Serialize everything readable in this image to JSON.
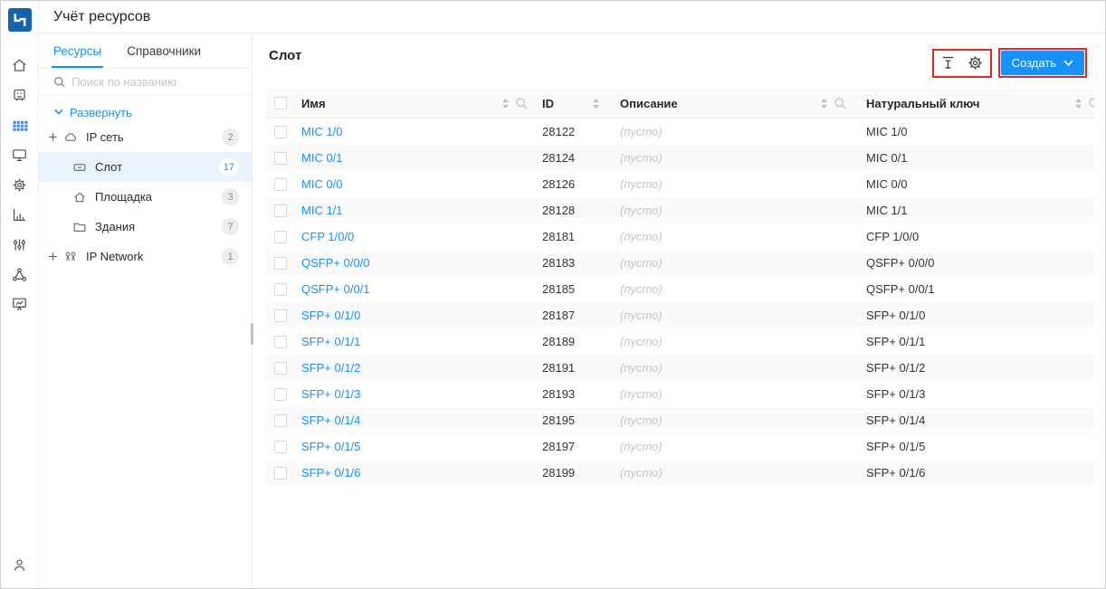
{
  "app": {
    "title": "Учёт ресурсов"
  },
  "colors": {
    "primary": "#1890ff",
    "annotation_red": "#e7261d",
    "logo_blue": "#1563ab",
    "selected_row_bg": "#e8f3fd"
  },
  "rail": {
    "items": [
      {
        "name": "home"
      },
      {
        "name": "terminal"
      },
      {
        "name": "apps-grid",
        "active": true
      },
      {
        "name": "monitor"
      },
      {
        "name": "settings"
      },
      {
        "name": "bar-chart"
      },
      {
        "name": "filters"
      },
      {
        "name": "cluster"
      },
      {
        "name": "dashboard"
      }
    ],
    "user": {
      "name": "user"
    }
  },
  "sidebar": {
    "tabs": [
      {
        "label": "Ресурсы",
        "active": true
      },
      {
        "label": "Справочники",
        "active": false
      }
    ],
    "search_placeholder": "Поиск по названию",
    "expand_label": "Развернуть",
    "tree": [
      {
        "key": "ip-net",
        "label": "IP сеть",
        "count": "2",
        "icon": "cloud",
        "expandable": true,
        "selected": false,
        "level": 0
      },
      {
        "key": "slot",
        "label": "Слот",
        "count": "17",
        "icon": "slot",
        "expandable": false,
        "selected": true,
        "level": 1
      },
      {
        "key": "site",
        "label": "Площадка",
        "count": "3",
        "icon": "home",
        "expandable": false,
        "selected": false,
        "level": 1
      },
      {
        "key": "buildings",
        "label": "Здания",
        "count": "7",
        "icon": "folder",
        "expandable": false,
        "selected": false,
        "level": 1
      },
      {
        "key": "ip-network",
        "label": "IP Network",
        "count": "1",
        "icon": "network",
        "expandable": true,
        "selected": false,
        "level": 0
      }
    ]
  },
  "main": {
    "title": "Слот",
    "toolbar": {
      "create_label": "Создать",
      "icons": [
        "row-height",
        "gear"
      ]
    },
    "table": {
      "empty_text": "(пусто)",
      "columns": [
        {
          "key": "name",
          "label": "Имя",
          "sortable": true,
          "searchable": true
        },
        {
          "key": "id",
          "label": "ID",
          "sortable": true,
          "searchable": false
        },
        {
          "key": "desc",
          "label": "Описание",
          "sortable": true,
          "searchable": true
        },
        {
          "key": "key",
          "label": "Натуральный ключ",
          "sortable": true,
          "searchable": true
        }
      ],
      "rows": [
        {
          "name": "MIC 1/0",
          "id": "28122",
          "desc": "(пусто)",
          "key": "MIC 1/0"
        },
        {
          "name": "MIC 0/1",
          "id": "28124",
          "desc": "(пусто)",
          "key": "MIC 0/1"
        },
        {
          "name": "MIC 0/0",
          "id": "28126",
          "desc": "(пусто)",
          "key": "MIC 0/0"
        },
        {
          "name": "MIC 1/1",
          "id": "28128",
          "desc": "(пусто)",
          "key": "MIC 1/1"
        },
        {
          "name": "CFP 1/0/0",
          "id": "28181",
          "desc": "(пусто)",
          "key": "CFP 1/0/0"
        },
        {
          "name": "QSFP+ 0/0/0",
          "id": "28183",
          "desc": "(пусто)",
          "key": "QSFP+ 0/0/0"
        },
        {
          "name": "QSFP+ 0/0/1",
          "id": "28185",
          "desc": "(пусто)",
          "key": "QSFP+ 0/0/1"
        },
        {
          "name": "SFP+ 0/1/0",
          "id": "28187",
          "desc": "(пусто)",
          "key": "SFP+ 0/1/0"
        },
        {
          "name": "SFP+ 0/1/1",
          "id": "28189",
          "desc": "(пусто)",
          "key": "SFP+ 0/1/1"
        },
        {
          "name": "SFP+ 0/1/2",
          "id": "28191",
          "desc": "(пусто)",
          "key": "SFP+ 0/1/2"
        },
        {
          "name": "SFP+ 0/1/3",
          "id": "28193",
          "desc": "(пусто)",
          "key": "SFP+ 0/1/3"
        },
        {
          "name": "SFP+ 0/1/4",
          "id": "28195",
          "desc": "(пусто)",
          "key": "SFP+ 0/1/4"
        },
        {
          "name": "SFP+ 0/1/5",
          "id": "28197",
          "desc": "(пусто)",
          "key": "SFP+ 0/1/5"
        },
        {
          "name": "SFP+ 0/1/6",
          "id": "28199",
          "desc": "(пусто)",
          "key": "SFP+ 0/1/6"
        }
      ]
    }
  }
}
